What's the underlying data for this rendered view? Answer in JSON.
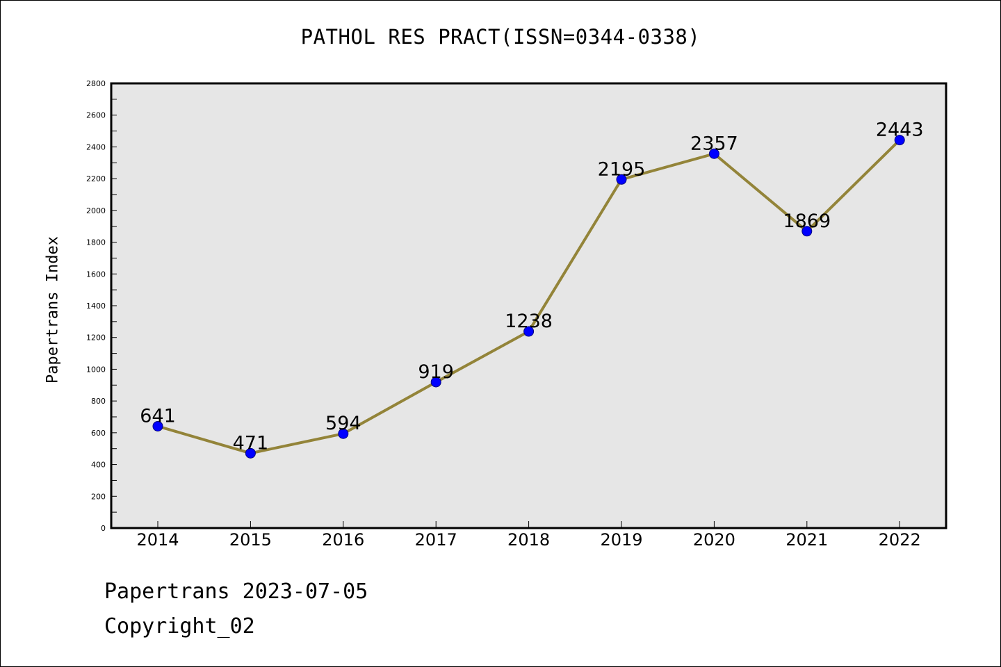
{
  "chart_data": {
    "type": "line",
    "title": "PATHOL RES PRACT(ISSN=0344-0338)",
    "xlabel": "",
    "ylabel": "Papertrans Index",
    "categories": [
      "2014",
      "2015",
      "2016",
      "2017",
      "2018",
      "2019",
      "2020",
      "2021",
      "2022"
    ],
    "series": [
      {
        "values": [
          641,
          471,
          594,
          919,
          1238,
          2195,
          2357,
          1869,
          2443
        ]
      }
    ],
    "data_labels": [
      "641",
      "471",
      "594",
      "919",
      "1238",
      "2195",
      "2357",
      "1869",
      "2443"
    ],
    "ylim": [
      0,
      2800
    ],
    "yticks": [
      0,
      200,
      400,
      600,
      800,
      1000,
      1200,
      1400,
      1600,
      1800,
      2000,
      2200,
      2400,
      2600,
      2800
    ],
    "grid": false,
    "colors": {
      "line": "#938439",
      "marker_fill": "#0000ff",
      "marker_edge": "#000080",
      "plot_background": "#e6e6e6"
    }
  },
  "footer": {
    "date_line": "Papertrans 2023-07-05",
    "copyright": "Copyright_02"
  }
}
